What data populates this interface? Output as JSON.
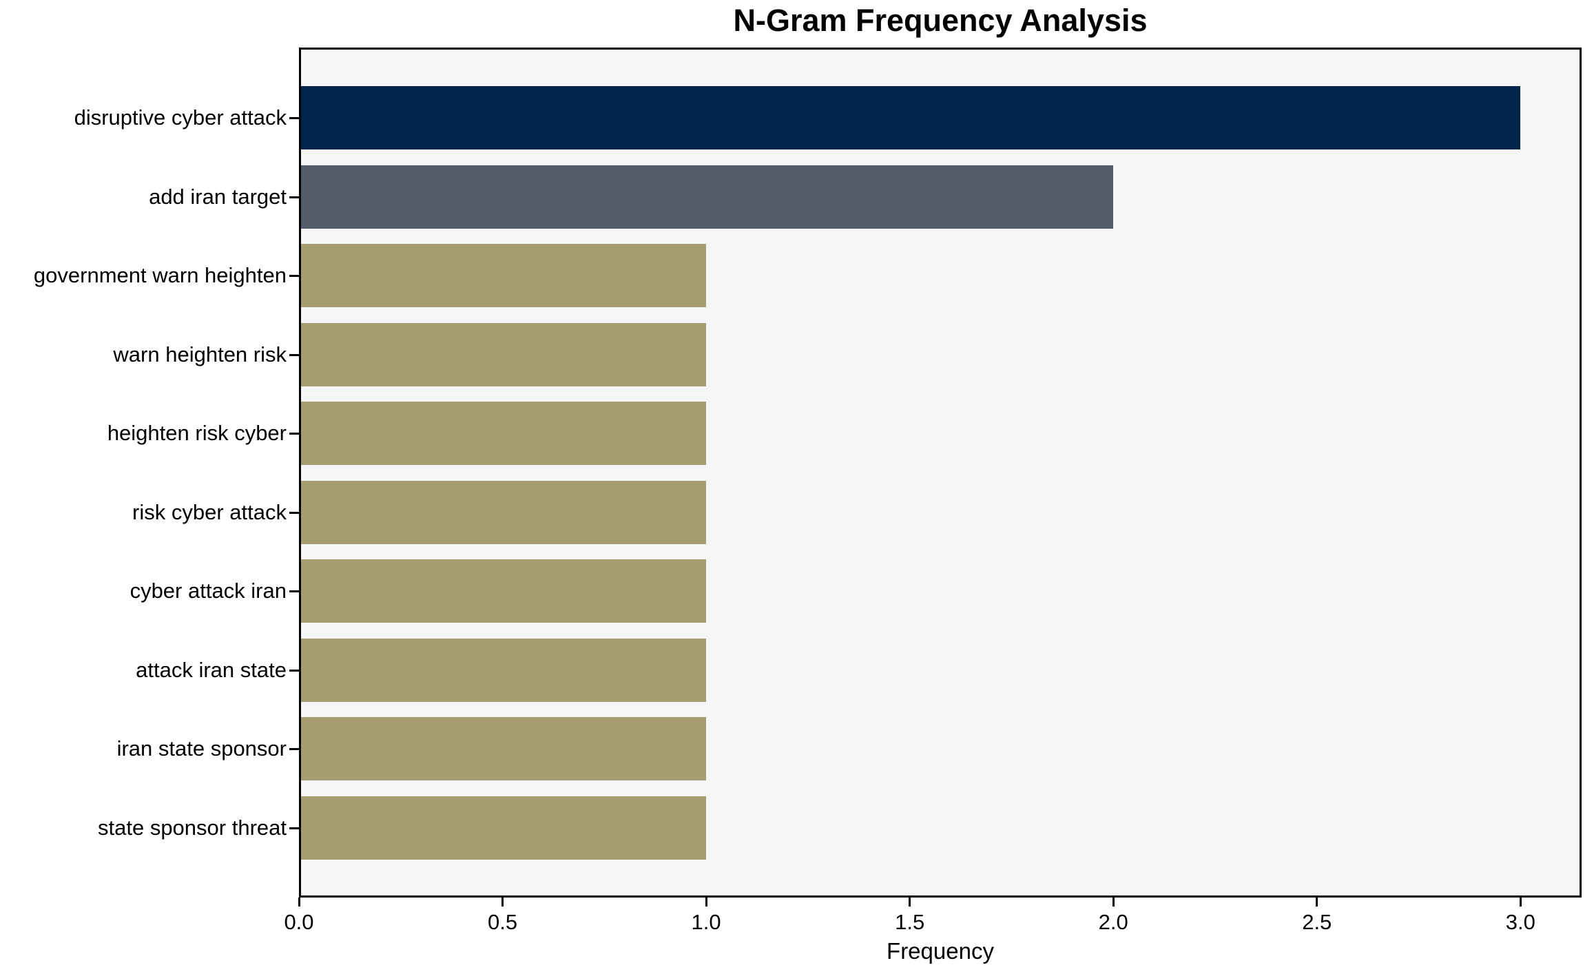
{
  "title": "N-Gram Frequency Analysis",
  "chart_data": {
    "type": "bar",
    "orientation": "horizontal",
    "title": "N-Gram Frequency Analysis",
    "xlabel": "Frequency",
    "ylabel": "",
    "categories": [
      "disruptive cyber attack",
      "add iran target",
      "government warn heighten",
      "warn heighten risk",
      "heighten risk cyber",
      "risk cyber attack",
      "cyber attack iran",
      "attack iran state",
      "iran state sponsor",
      "state sponsor threat"
    ],
    "values": [
      3,
      2,
      1,
      1,
      1,
      1,
      1,
      1,
      1,
      1
    ],
    "bar_colors": [
      "#02234a",
      "#555b6a",
      "#a69d73",
      "#a69d73",
      "#a69d73",
      "#a69d73",
      "#a69d73",
      "#a69d73",
      "#a69d73",
      "#a69d73"
    ],
    "x_ticks": [
      "0.0",
      "0.5",
      "1.0",
      "1.5",
      "2.0",
      "2.5",
      "3.0"
    ],
    "x_tick_values": [
      0,
      0.5,
      1,
      1.5,
      2,
      2.5,
      3
    ],
    "xlim": [
      0,
      3.15
    ],
    "grid": false,
    "legend": "none",
    "plot_background": "#f6f6f7",
    "figure_background": "#ffffff",
    "spine_color": "#000000",
    "text_color": "#000000"
  }
}
